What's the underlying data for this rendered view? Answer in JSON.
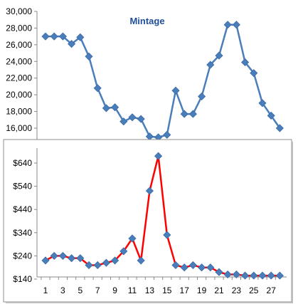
{
  "chart_data": [
    {
      "type": "line",
      "title": "Mintage",
      "x": [
        1,
        2,
        3,
        4,
        5,
        6,
        7,
        8,
        9,
        10,
        11,
        12,
        13,
        14,
        15,
        16,
        17,
        18,
        19,
        20,
        21,
        22,
        23,
        24,
        25,
        26,
        27,
        28
      ],
      "series": [
        {
          "values": [
            27000,
            27000,
            27000,
            26100,
            26900,
            24600,
            20800,
            18400,
            18500,
            16800,
            17300,
            17100,
            15000,
            14900,
            15200,
            20500,
            17700,
            17700,
            19800,
            23600,
            24700,
            28400,
            28400,
            23900,
            22600,
            19000,
            17500,
            16000
          ],
          "color": "#4a7ebb",
          "marker": "diamond"
        }
      ],
      "yticks": [
        "30,000",
        "28,000",
        "26,000",
        "24,000",
        "22,000",
        "20,000",
        "18,000",
        "16,000"
      ],
      "ylim": [
        14000,
        30000
      ],
      "grid": false,
      "legend": "none"
    },
    {
      "type": "line",
      "x": [
        1,
        2,
        3,
        4,
        5,
        6,
        7,
        8,
        9,
        10,
        11,
        12,
        13,
        14,
        15,
        16,
        17,
        18,
        19,
        20,
        21,
        22,
        23,
        24,
        25,
        26,
        27,
        28
      ],
      "xticks": [
        "1",
        "3",
        "5",
        "7",
        "9",
        "11",
        "13",
        "15",
        "17",
        "19",
        "21",
        "23",
        "25",
        "27"
      ],
      "series": [
        {
          "values": [
            220,
            240,
            240,
            230,
            230,
            200,
            200,
            210,
            220,
            260,
            315,
            220,
            520,
            670,
            330,
            200,
            190,
            200,
            190,
            190,
            170,
            160,
            160,
            155,
            155,
            155,
            155,
            155
          ],
          "color": "#ff0000",
          "marker_color": "#4a7ebb",
          "marker": "diamond"
        }
      ],
      "yticks": [
        "$640",
        "$540",
        "$440",
        "$340",
        "$240",
        "$140"
      ],
      "ylim": [
        140,
        700
      ],
      "grid": false,
      "legend": "none"
    }
  ]
}
